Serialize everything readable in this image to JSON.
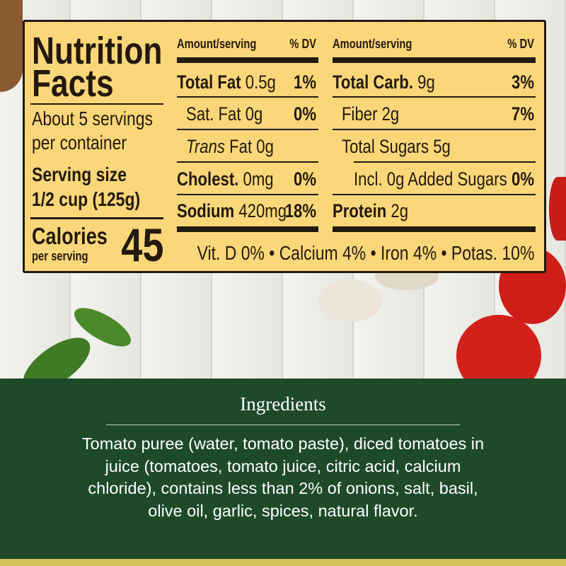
{
  "label": {
    "title_line1": "Nutrition",
    "title_line2": "Facts",
    "servings_line1": "About 5 servings",
    "servings_line2": "per container",
    "serving_size_label": "Serving size",
    "serving_size_value": "1/2 cup (125g)",
    "calories_label": "Calories",
    "calories_sub": "per serving",
    "calories_value": "45",
    "left_column": {
      "header_amount": "Amount/serving",
      "header_dv": "% DV",
      "rows": [
        {
          "name": "Total Fat",
          "amount": "0.5g",
          "dv": "1%"
        },
        {
          "name": "Sat. Fat",
          "amount": "0g",
          "dv": "0%"
        },
        {
          "name": "Trans",
          "amount": "Fat 0g",
          "dv": ""
        },
        {
          "name": "Cholest.",
          "amount": "0mg",
          "dv": "0%"
        },
        {
          "name": "Sodium",
          "amount": "420mg",
          "dv": "18%"
        }
      ]
    },
    "right_column": {
      "header_amount": "Amount/serving",
      "header_dv": "% DV",
      "rows": [
        {
          "name": "Total Carb.",
          "amount": "9g",
          "dv": "3%"
        },
        {
          "name": "Fiber",
          "amount": "2g",
          "dv": "7%"
        },
        {
          "name": "Total Sugars",
          "amount": "5g",
          "dv": ""
        },
        {
          "name": "Incl. 0g Added Sugars",
          "amount": "",
          "dv": "0%"
        },
        {
          "name": "Protein",
          "amount": "2g",
          "dv": ""
        }
      ]
    },
    "vitamins": "Vit. D 0% • Calcium 4% • Iron 4% • Potas. 10%"
  },
  "ingredients": {
    "title": "Ingredients",
    "text": "Tomato puree (water, tomato paste), diced tomatoes in juice (tomatoes, tomato juice, citric acid, calcium chloride), contains less than 2% of onions, salt, basil, olive oil, garlic, spices, natural flavor."
  },
  "colors": {
    "label_bg": "#fcd779",
    "ink": "#231a0f",
    "panel_green": "#1e4a2a"
  }
}
